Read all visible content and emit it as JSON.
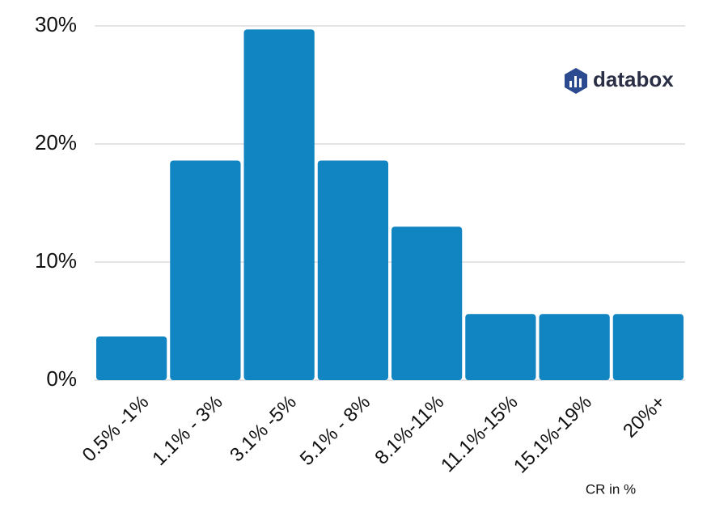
{
  "chart_data": {
    "type": "bar",
    "brand": "databox",
    "x_label": "CR in %",
    "categories": [
      "0.5% -1%",
      "1.1% - 3%",
      "3.1% -5%",
      "5.1% - 8%",
      "8.1%-11%",
      "11.1%-15%",
      "15.1%-19%",
      "20%+"
    ],
    "values": [
      3.7,
      18.6,
      29.7,
      18.6,
      13.0,
      5.6,
      5.6,
      5.6
    ],
    "color": "#1185c1",
    "ylim": [
      0,
      30
    ],
    "yticks": [
      {
        "value": 0,
        "label": "0%"
      },
      {
        "value": 10,
        "label": "10%"
      },
      {
        "value": 20,
        "label": "20%"
      },
      {
        "value": 30,
        "label": "30%"
      }
    ],
    "grid": true
  }
}
